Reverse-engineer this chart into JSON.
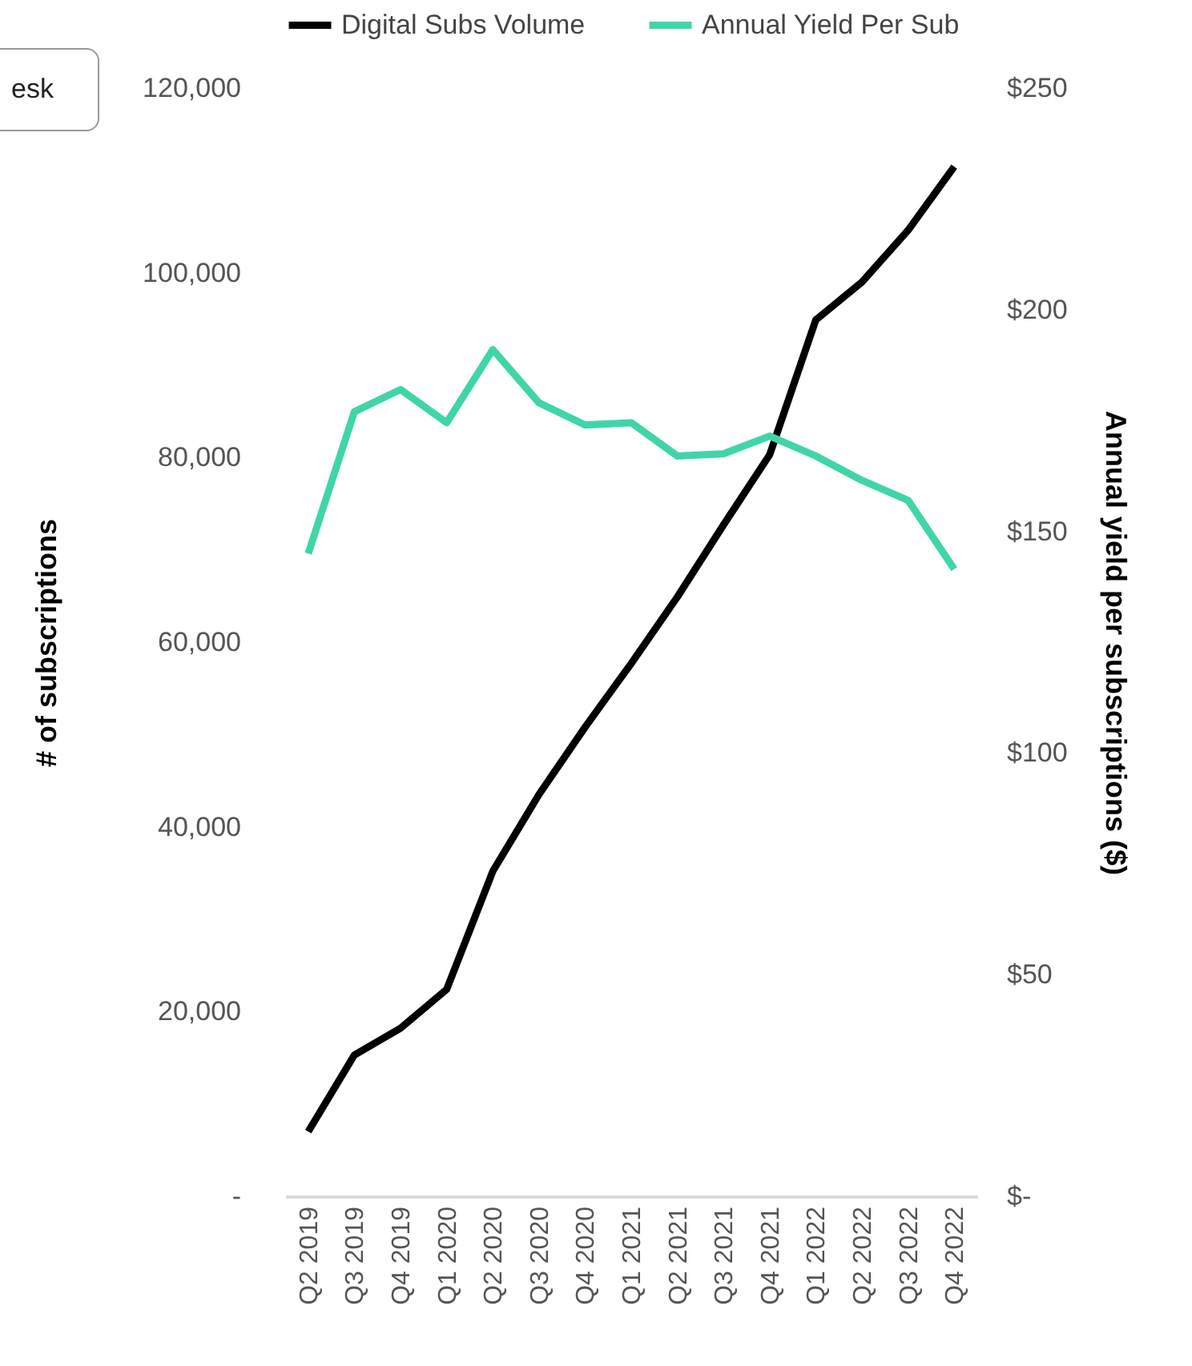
{
  "chart_data": {
    "type": "line",
    "ylabel": "# of subscriptions",
    "y2label": "Annual yield per subscriptions ($)",
    "categories": [
      "Q2 2019",
      "Q3 2019",
      "Q4 2019",
      "Q1 2020",
      "Q2 2020",
      "Q3 2020",
      "Q4 2020",
      "Q1 2021",
      "Q2 2021",
      "Q3 2021",
      "Q4 2021",
      "Q1 2022",
      "Q2 2022",
      "Q3 2022",
      "Q4 2022"
    ],
    "series": [
      {
        "name": "Digital Subs Volume",
        "color": "#000000",
        "values": [
          7000,
          15300,
          18200,
          22400,
          35200,
          43500,
          50800,
          57700,
          64900,
          72700,
          80300,
          94900,
          99000,
          104600,
          111500
        ]
      },
      {
        "name": "Annual Yield Per Sub",
        "color": "#40d5a8",
        "axis": "y2",
        "values": [
          145,
          177,
          182,
          174.5,
          191,
          179,
          174,
          174.5,
          167,
          167.5,
          171.5,
          167,
          161.5,
          157,
          141.5
        ]
      }
    ],
    "ylim": [
      0,
      120000
    ],
    "yticks": [
      {
        "value": 0,
        "label": "-"
      },
      {
        "value": 20000,
        "label": "20,000"
      },
      {
        "value": 40000,
        "label": "40,000"
      },
      {
        "value": 60000,
        "label": "60,000"
      },
      {
        "value": 80000,
        "label": "80,000"
      },
      {
        "value": 100000,
        "label": "100,000"
      },
      {
        "value": 120000,
        "label": "120,000"
      }
    ],
    "y2lim": [
      0,
      250
    ],
    "y2ticks": [
      {
        "value": 0,
        "label": "$-"
      },
      {
        "value": 50,
        "label": "$50"
      },
      {
        "value": 100,
        "label": "$100"
      },
      {
        "value": 150,
        "label": "$150"
      },
      {
        "value": 200,
        "label": "$200"
      },
      {
        "value": 250,
        "label": "$250"
      }
    ],
    "grid": false,
    "legend": "top",
    "marker": "none",
    "line_style": "solid",
    "annotations": [
      "esk"
    ]
  }
}
